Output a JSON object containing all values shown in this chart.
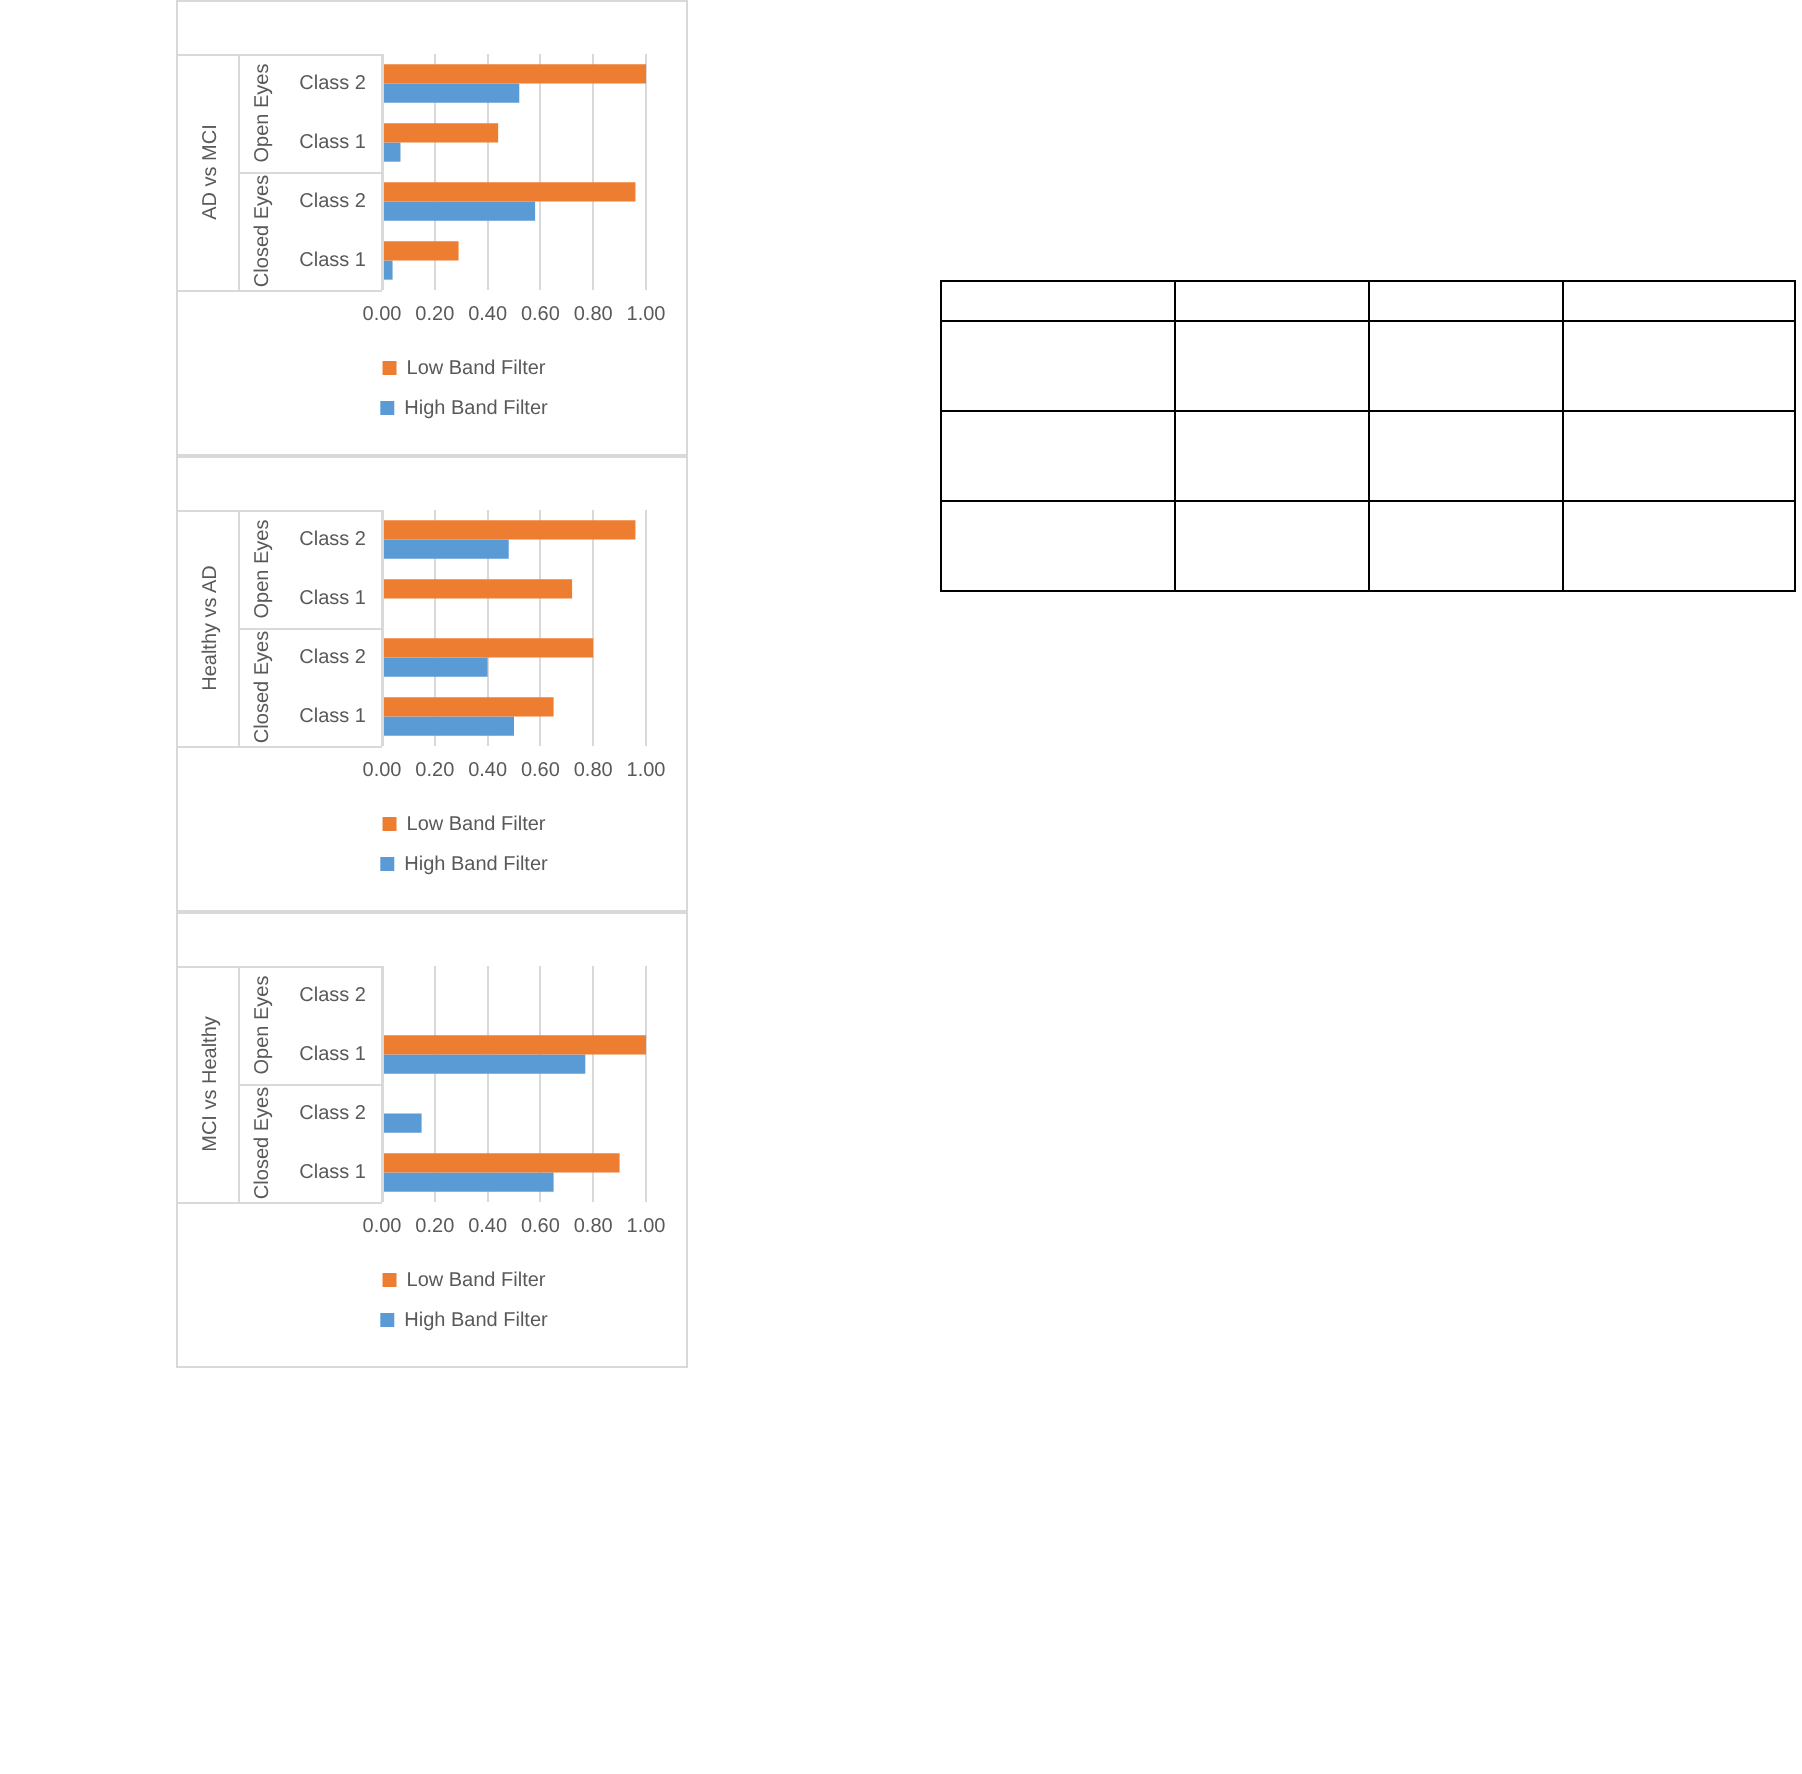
{
  "chart_data": [
    {
      "type": "bar",
      "orientation": "horizontal",
      "ylabel": "AD vs MCI",
      "annotations": [
        "Open Eyes",
        "Closed Eyes"
      ],
      "categories": [
        "Class 2",
        "Class 1",
        "Class 2",
        "Class 1"
      ],
      "series": [
        {
          "name": "Low Band Filter",
          "color": "#ed7d31",
          "values": [
            1.0,
            0.44,
            0.96,
            0.29
          ]
        },
        {
          "name": "High Band Filter",
          "color": "#5b9bd5",
          "values": [
            0.52,
            0.07,
            0.58,
            0.04
          ]
        }
      ],
      "xlim": [
        0,
        1
      ],
      "xticks": [
        {
          "value": 0,
          "label": "0.00"
        },
        {
          "value": 0.2,
          "label": "0.20"
        },
        {
          "value": 0.4,
          "label": "0.40"
        },
        {
          "value": 0.6,
          "label": "0.60"
        },
        {
          "value": 0.8,
          "label": "0.80"
        },
        {
          "value": 1,
          "label": "1.00"
        }
      ],
      "grid": "x",
      "legend": "bottom"
    },
    {
      "type": "bar",
      "orientation": "horizontal",
      "ylabel": "Healthy vs AD",
      "annotations": [
        "Open Eyes",
        "Closed Eyes"
      ],
      "categories": [
        "Class 2",
        "Class 1",
        "Class 2",
        "Class 1"
      ],
      "series": [
        {
          "name": "Low Band Filter",
          "color": "#ed7d31",
          "values": [
            0.96,
            0.72,
            0.8,
            0.65
          ]
        },
        {
          "name": "High Band Filter",
          "color": "#5b9bd5",
          "values": [
            0.48,
            null,
            0.4,
            0.5
          ]
        }
      ],
      "xlim": [
        0,
        1
      ],
      "xticks": [
        {
          "value": 0,
          "label": "0.00"
        },
        {
          "value": 0.2,
          "label": "0.20"
        },
        {
          "value": 0.4,
          "label": "0.40"
        },
        {
          "value": 0.6,
          "label": "0.60"
        },
        {
          "value": 0.8,
          "label": "0.80"
        },
        {
          "value": 1,
          "label": "1.00"
        }
      ],
      "grid": "x",
      "legend": "bottom"
    },
    {
      "type": "bar",
      "orientation": "horizontal",
      "ylabel": "MCI vs Healthy",
      "annotations": [
        "Open Eyes",
        "Closed Eyes"
      ],
      "categories": [
        "Class 2",
        "Class 1",
        "Class 2",
        "Class 1"
      ],
      "series": [
        {
          "name": "Low Band Filter",
          "color": "#ed7d31",
          "values": [
            null,
            1.0,
            null,
            0.9
          ]
        },
        {
          "name": "High Band Filter",
          "color": "#5b9bd5",
          "values": [
            null,
            0.77,
            0.15,
            0.65
          ]
        }
      ],
      "xlim": [
        0,
        1
      ],
      "xticks": [
        {
          "value": 0,
          "label": "0.00"
        },
        {
          "value": 0.2,
          "label": "0.20"
        },
        {
          "value": 0.4,
          "label": "0.40"
        },
        {
          "value": 0.6,
          "label": "0.60"
        },
        {
          "value": 0.8,
          "label": "0.80"
        },
        {
          "value": 1,
          "label": "1.00"
        }
      ],
      "grid": "x",
      "legend": "bottom"
    }
  ]
}
